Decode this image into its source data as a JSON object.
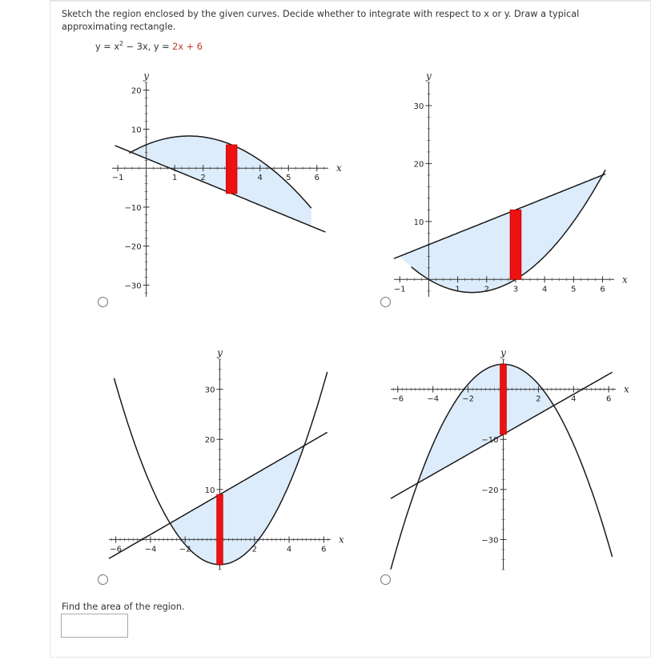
{
  "question": {
    "prompt": "Sketch the region enclosed by the given curves. Decide whether to integrate with respect to x or y. Draw a typical approximating rectangle.",
    "equation": {
      "part1": "y = x",
      "exp": "2",
      "part2": " − 3x,  y = ",
      "part3": "2x + 6"
    },
    "find_label": "Find the area of the region.",
    "answer_value": ""
  },
  "colors": {
    "fill": "#dcecfb",
    "rect": "#ee1111",
    "curve": "#1a1a1a",
    "equation_red": "#c0392b"
  },
  "options": [
    {
      "id": "A",
      "selected": false,
      "x_axis_label": "x",
      "y_axis_label": "y",
      "x_ticks": [
        "-1",
        "1",
        "2",
        "3",
        "4",
        "5",
        "6"
      ],
      "y_ticks": [
        "20",
        "10",
        "-10",
        "-20",
        "-30"
      ],
      "x_range": [
        -1.2,
        6.4
      ],
      "y_range": [
        -33,
        22
      ]
    },
    {
      "id": "B",
      "selected": false,
      "x_axis_label": "x",
      "y_axis_label": "y",
      "x_ticks": [
        "-1",
        "1",
        "2",
        "3",
        "4",
        "5",
        "6"
      ],
      "y_ticks": [
        "30",
        "20",
        "10"
      ],
      "x_range": [
        -1.2,
        6.4
      ],
      "y_range": [
        -3,
        34
      ]
    },
    {
      "id": "C",
      "selected": false,
      "x_axis_label": "x",
      "y_axis_label": "y",
      "x_ticks": [
        "-6",
        "-4",
        "-2",
        "2",
        "4",
        "6"
      ],
      "y_ticks": [
        "30",
        "20",
        "10"
      ],
      "x_range": [
        -6.4,
        6.4
      ],
      "y_range": [
        -6,
        36
      ]
    },
    {
      "id": "D",
      "selected": false,
      "x_axis_label": "x",
      "y_axis_label": "y",
      "x_ticks": [
        "-6",
        "-4",
        "-2",
        "2",
        "4",
        "6"
      ],
      "y_ticks": [
        "-10",
        "-20",
        "-30"
      ],
      "x_range": [
        -6.4,
        6.4
      ],
      "y_range": [
        -36,
        6
      ]
    }
  ]
}
